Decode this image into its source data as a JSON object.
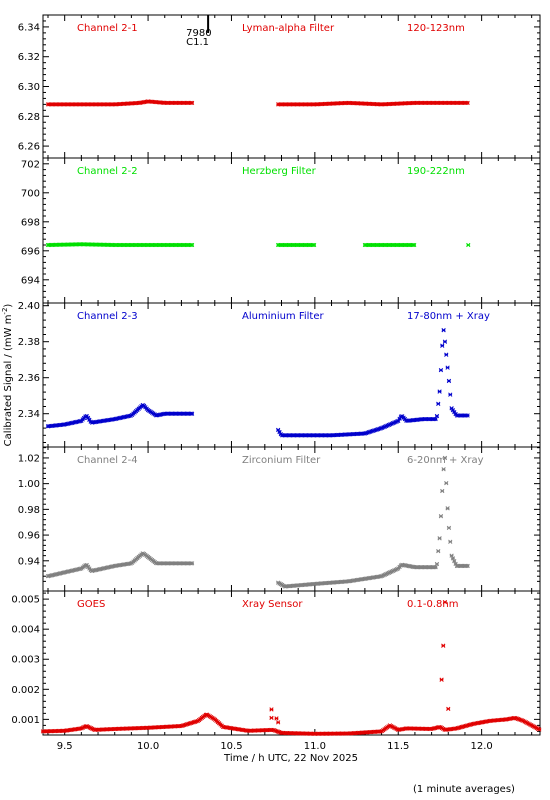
{
  "chart_data": {
    "type": "scatter",
    "x_label": "Time / h UTC, 22 Nov 2025",
    "y_label": "Calibrated Signal / (mW m",
    "y_label_sup": "-2",
    "y_label_close": ")",
    "footnote": "(1 minute averages)",
    "x_range": [
      9.37,
      12.35
    ],
    "x_ticks": [
      9.5,
      10.0,
      10.5,
      11.0,
      11.5,
      12.0
    ],
    "x_tick_labels": [
      "9.5",
      "10.0",
      "10.5",
      "11.0",
      "11.5",
      "12.0"
    ],
    "event_marker": {
      "x": 10.36,
      "label_top": "7980",
      "label_bottom": "C1.1"
    },
    "panels": [
      {
        "channel": "Channel 2-1",
        "filter": "Lyman-alpha Filter",
        "band": "120-123nm",
        "color": "#e00000",
        "ylim": [
          6.252,
          6.348
        ],
        "y_ticks": [
          6.26,
          6.28,
          6.3,
          6.32,
          6.34
        ],
        "y_tick_labels": [
          "6.26",
          "6.28",
          "6.30",
          "6.32",
          "6.34"
        ],
        "points": [
          [
            9.4,
            6.288
          ],
          [
            9.6,
            6.288
          ],
          [
            9.8,
            6.288
          ],
          [
            9.95,
            6.289
          ],
          [
            10.0,
            6.29
          ],
          [
            10.1,
            6.289
          ],
          [
            10.27,
            6.289
          ],
          [
            10.78,
            6.288
          ],
          [
            11.0,
            6.288
          ],
          [
            11.2,
            6.289
          ],
          [
            11.4,
            6.288
          ],
          [
            11.6,
            6.289
          ],
          [
            11.8,
            6.289
          ],
          [
            11.92,
            6.289
          ]
        ]
      },
      {
        "channel": "Channel 2-2",
        "filter": "Herzberg Filter",
        "band": "190-222nm",
        "color": "#00e000",
        "ylim": [
          692.4,
          702.4
        ],
        "y_ticks": [
          694,
          696,
          698,
          700,
          702
        ],
        "y_tick_labels": [
          "694",
          "696",
          "698",
          "700",
          "702"
        ],
        "points": [
          [
            9.4,
            696.4
          ],
          [
            9.6,
            696.45
          ],
          [
            9.8,
            696.4
          ],
          [
            10.0,
            696.4
          ],
          [
            10.27,
            696.4
          ],
          [
            10.78,
            696.4
          ],
          [
            11.0,
            696.4
          ],
          [
            11.3,
            696.4
          ],
          [
            11.6,
            696.4
          ],
          [
            11.92,
            696.4
          ]
        ]
      },
      {
        "channel": "Channel 2-3",
        "filter": "Aluminium Filter",
        "band": "17-80nm + Xray",
        "color": "#0000cc",
        "ylim": [
          2.3215,
          2.4015
        ],
        "y_ticks": [
          2.34,
          2.36,
          2.38,
          2.4
        ],
        "y_tick_labels": [
          "2.34",
          "2.36",
          "2.38",
          "2.40"
        ],
        "points": [
          [
            9.4,
            2.333
          ],
          [
            9.5,
            2.334
          ],
          [
            9.6,
            2.336
          ],
          [
            9.63,
            2.339
          ],
          [
            9.66,
            2.335
          ],
          [
            9.8,
            2.337
          ],
          [
            9.9,
            2.339
          ],
          [
            9.97,
            2.345
          ],
          [
            10.0,
            2.342
          ],
          [
            10.05,
            2.339
          ],
          [
            10.1,
            2.34
          ],
          [
            10.2,
            2.34
          ],
          [
            10.27,
            2.34
          ],
          [
            10.78,
            2.331
          ],
          [
            10.8,
            2.328
          ],
          [
            10.95,
            2.328
          ],
          [
            11.1,
            2.328
          ],
          [
            11.3,
            2.329
          ],
          [
            11.4,
            2.332
          ],
          [
            11.5,
            2.336
          ],
          [
            11.52,
            2.339
          ],
          [
            11.55,
            2.336
          ],
          [
            11.65,
            2.337
          ],
          [
            11.73,
            2.337
          ],
          [
            11.75,
            2.354
          ],
          [
            11.77,
            2.388
          ],
          [
            11.78,
            2.38
          ],
          [
            11.8,
            2.362
          ],
          [
            11.82,
            2.343
          ],
          [
            11.85,
            2.339
          ],
          [
            11.92,
            2.339
          ]
        ]
      },
      {
        "channel": "Channel 2-4",
        "filter": "Zirconium Filter",
        "band": "6-20nm + Xray",
        "color": "#808080",
        "ylim": [
          0.9165,
          1.0285
        ],
        "y_ticks": [
          0.94,
          0.96,
          0.98,
          1.0,
          1.02
        ],
        "y_tick_labels": [
          "0.94",
          "0.96",
          "0.98",
          "1.00",
          "1.02"
        ],
        "points": [
          [
            9.4,
            0.928
          ],
          [
            9.5,
            0.931
          ],
          [
            9.6,
            0.934
          ],
          [
            9.63,
            0.937
          ],
          [
            9.66,
            0.932
          ],
          [
            9.8,
            0.936
          ],
          [
            9.9,
            0.938
          ],
          [
            9.97,
            0.946
          ],
          [
            10.0,
            0.943
          ],
          [
            10.05,
            0.938
          ],
          [
            10.2,
            0.938
          ],
          [
            10.27,
            0.938
          ],
          [
            10.78,
            0.923
          ],
          [
            10.82,
            0.92
          ],
          [
            11.0,
            0.922
          ],
          [
            11.2,
            0.924
          ],
          [
            11.4,
            0.928
          ],
          [
            11.5,
            0.934
          ],
          [
            11.52,
            0.937
          ],
          [
            11.6,
            0.935
          ],
          [
            11.73,
            0.935
          ],
          [
            11.75,
            0.96
          ],
          [
            11.77,
            1.009
          ],
          [
            11.78,
            1.02
          ],
          [
            11.8,
            0.971
          ],
          [
            11.82,
            0.944
          ],
          [
            11.85,
            0.936
          ],
          [
            11.92,
            0.936
          ]
        ]
      },
      {
        "channel": "GOES",
        "filter": "Xray Sensor",
        "band": "0.1-0.8nm",
        "color": "#e00000",
        "ylim": [
          0.00048,
          0.00527
        ],
        "y_ticks": [
          0.001,
          0.002,
          0.003,
          0.004,
          0.005
        ],
        "y_tick_labels": [
          "0.001",
          "0.002",
          "0.003",
          "0.004",
          "0.005"
        ],
        "points": [
          [
            9.37,
            0.0006
          ],
          [
            9.5,
            0.00062
          ],
          [
            9.6,
            0.0007
          ],
          [
            9.63,
            0.00078
          ],
          [
            9.68,
            0.00065
          ],
          [
            9.8,
            0.00068
          ],
          [
            10.0,
            0.00072
          ],
          [
            10.2,
            0.00078
          ],
          [
            10.3,
            0.00095
          ],
          [
            10.35,
            0.00117
          ],
          [
            10.4,
            0.001
          ],
          [
            10.45,
            0.00075
          ],
          [
            10.6,
            0.00062
          ],
          [
            10.75,
            0.00065
          ],
          [
            10.8,
            0.00055
          ],
          [
            11.0,
            0.00052
          ],
          [
            11.2,
            0.00053
          ],
          [
            11.4,
            0.0006
          ],
          [
            11.45,
            0.0008
          ],
          [
            11.5,
            0.00065
          ],
          [
            11.55,
            0.0007
          ],
          [
            11.7,
            0.00068
          ],
          [
            11.75,
            0.00075
          ],
          [
            11.78,
            0.00065
          ],
          [
            11.85,
            0.0007
          ],
          [
            11.95,
            0.00085
          ],
          [
            12.05,
            0.00095
          ],
          [
            12.15,
            0.001
          ],
          [
            12.2,
            0.00105
          ],
          [
            12.25,
            0.00095
          ],
          [
            12.35,
            0.00065
          ]
        ],
        "outliers": [
          [
            10.74,
            0.00133
          ],
          [
            10.74,
            0.00105
          ],
          [
            10.77,
            0.00103
          ],
          [
            10.78,
            0.0009
          ],
          [
            11.76,
            0.00232
          ],
          [
            11.77,
            0.00345
          ],
          [
            11.78,
            0.0049
          ],
          [
            11.8,
            0.00135
          ]
        ]
      }
    ]
  }
}
